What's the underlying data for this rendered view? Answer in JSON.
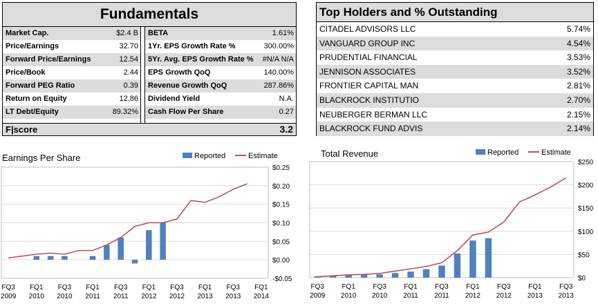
{
  "fundamentals": {
    "title": "Fundamentals",
    "left": [
      {
        "label": "Market Cap.",
        "value": "$2.4 B"
      },
      {
        "label": "Price/Earnings",
        "value": "32.70"
      },
      {
        "label": "Forward Price/Earnings",
        "value": "12.54"
      },
      {
        "label": "Price/Book",
        "value": "2.44"
      },
      {
        "label": "Forward PEG Ratio",
        "value": "0.39"
      },
      {
        "label": "Return on Equity",
        "value": "12.86"
      },
      {
        "label": "LT Debt/Equity",
        "value": "89.32%"
      }
    ],
    "right": [
      {
        "label": "BETA",
        "value": "1.61%"
      },
      {
        "label": "1Yr. EPS Growth Rate %",
        "value": "300.00%"
      },
      {
        "label": "5Yr. Avg. EPS Growth Rate %",
        "value": "#N/A N/A"
      },
      {
        "label": "EPS Growth QoQ",
        "value": "140.00%"
      },
      {
        "label": "Revenue Growth QoQ",
        "value": "287.86%"
      },
      {
        "label": "Dividend Yield",
        "value": "N.A."
      },
      {
        "label": "Cash Flow Per Share",
        "value": "0.27"
      }
    ],
    "fscore_label": "F|score",
    "fscore_value": "3.2"
  },
  "holders": {
    "title": "Top Holders and % Outstanding",
    "rows": [
      {
        "name": "CITADEL ADVISORS LLC",
        "pct": "5.74%"
      },
      {
        "name": "VANGUARD GROUP INC",
        "pct": "4.54%"
      },
      {
        "name": "PRUDENTIAL FINANCIAL",
        "pct": "3.53%"
      },
      {
        "name": "JENNISON ASSOCIATES",
        "pct": "3.52%"
      },
      {
        "name": "FRONTIER CAPITAL MAN",
        "pct": "2.81%"
      },
      {
        "name": "BLACKROCK INSTITUTIO",
        "pct": "2.70%"
      },
      {
        "name": "NEUBERGER BERMAN LLC",
        "pct": "2.15%"
      },
      {
        "name": "BLACKROCK FUND ADVIS",
        "pct": "2.14%"
      }
    ]
  },
  "chart_data": [
    {
      "type": "bar",
      "title": "Earnings Per Share",
      "legend": [
        "Reported",
        "Estimate"
      ],
      "legend_position": "top",
      "colors": {
        "bar": "#4f81bd",
        "line": "#c0504d"
      },
      "x_tick_labels": [
        [
          "FQ3",
          "2009"
        ],
        [
          "FQ1",
          "2010"
        ],
        [
          "FQ3",
          "2010"
        ],
        [
          "FQ1",
          "2011"
        ],
        [
          "FQ3",
          "2011"
        ],
        [
          "FQ1",
          "2012"
        ],
        [
          "FQ3",
          "2012"
        ],
        [
          "FQ1",
          "2013"
        ],
        [
          "FQ3",
          "2013"
        ],
        [
          "FQ1",
          "2014"
        ]
      ],
      "y_tick_labels": [
        "$0.25",
        "$0.20",
        "$0.15",
        "$0.10",
        "$0.05",
        "$0.00",
        "-$0.05"
      ],
      "ylim": [
        -0.05,
        0.25
      ],
      "y_ticks": [
        0.25,
        0.2,
        0.15,
        0.1,
        0.05,
        0.0,
        -0.05
      ],
      "n_quarters": 19,
      "series": [
        {
          "name": "Reported",
          "kind": "bar",
          "values": [
            null,
            null,
            0.01,
            0.01,
            0.01,
            null,
            0.01,
            0.04,
            0.06,
            -0.01,
            0.08,
            0.1,
            null,
            null,
            null,
            null,
            null,
            null,
            null
          ]
        },
        {
          "name": "Estimate",
          "kind": "line",
          "values": [
            0.005,
            0.01,
            0.015,
            0.018,
            0.015,
            0.025,
            0.025,
            0.04,
            0.06,
            0.09,
            0.1,
            0.1,
            0.11,
            0.16,
            0.155,
            0.17,
            0.19,
            0.205,
            null
          ]
        }
      ]
    },
    {
      "type": "bar",
      "title": "Total Revenue",
      "legend": [
        "Reported",
        "Estimate"
      ],
      "legend_position": "top",
      "colors": {
        "bar": "#4f81bd",
        "line": "#c0504d"
      },
      "x_tick_labels": [
        [
          "FQ3",
          "2009"
        ],
        [
          "FQ1",
          "2010"
        ],
        [
          "FQ3",
          "2010"
        ],
        [
          "FQ1",
          "2011"
        ],
        [
          "FQ3",
          "2011"
        ],
        [
          "FQ1",
          "2012"
        ],
        [
          "FQ3",
          "2012"
        ],
        [
          "FQ1",
          "2013"
        ],
        [
          "FQ3",
          "2013"
        ]
      ],
      "y_tick_labels": [
        "$250",
        "$200",
        "$150",
        "$100",
        "$50",
        "$0"
      ],
      "ylim": [
        0,
        250
      ],
      "y_ticks": [
        250,
        200,
        150,
        100,
        50,
        0
      ],
      "n_quarters": 17,
      "series": [
        {
          "name": "Reported",
          "kind": "bar",
          "values": [
            3,
            4,
            5,
            6,
            7,
            10,
            13,
            18,
            26,
            52,
            80,
            85,
            null,
            null,
            null,
            null,
            null
          ]
        },
        {
          "name": "Estimate",
          "kind": "line",
          "values": [
            2,
            4,
            6,
            7,
            9,
            14,
            19,
            24,
            32,
            58,
            92,
            98,
            120,
            163,
            178,
            195,
            215
          ]
        }
      ]
    }
  ]
}
